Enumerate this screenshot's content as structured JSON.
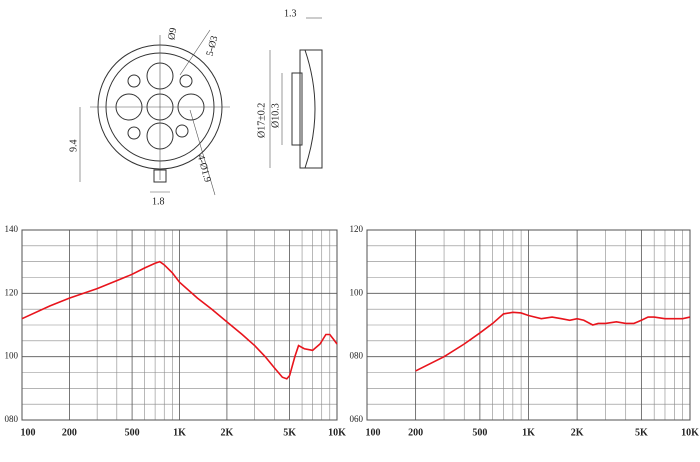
{
  "drawing": {
    "labels": [
      "1.3",
      "Ø9",
      "5-Ø3",
      "Ø17±0.2",
      "Ø10.3",
      "9.4",
      "1.8",
      "4-Ø1.9"
    ]
  },
  "chart_data": [
    {
      "type": "line",
      "xscale": "log",
      "color": "#e8141c",
      "grid": true,
      "xlim": [
        100,
        10000
      ],
      "ylim": [
        80,
        140
      ],
      "xticks": [
        100,
        200,
        500,
        {
          "value": 1000,
          "label": "1K"
        },
        {
          "value": 2000,
          "label": "2K"
        },
        {
          "value": 5000,
          "label": "5K"
        },
        {
          "value": 10000,
          "label": "10K"
        }
      ],
      "minor_xticks": [
        300,
        400,
        600,
        700,
        800,
        900,
        3000,
        4000,
        6000,
        7000,
        8000,
        9000
      ],
      "yticks": [
        140,
        120,
        100,
        {
          "value": 80,
          "label": "080"
        }
      ],
      "minor_yticks": [
        135,
        130,
        125,
        115,
        110,
        105,
        95,
        90,
        85
      ],
      "x": [
        100,
        150,
        200,
        300,
        400,
        500,
        600,
        700,
        750,
        800,
        900,
        1000,
        1300,
        1600,
        2000,
        2500,
        3000,
        3500,
        4000,
        4500,
        4800,
        5000,
        5400,
        5700,
        6200,
        7000,
        7800,
        8500,
        9000,
        9500,
        10000
      ],
      "values": [
        112,
        116,
        118.5,
        121.5,
        124,
        126,
        128,
        129.5,
        130,
        129,
        126.5,
        123.5,
        118.5,
        115,
        111,
        107,
        103.5,
        100,
        96.5,
        93.5,
        93,
        94,
        100,
        103.5,
        102.5,
        102,
        104,
        107,
        107,
        105.5,
        104
      ]
    },
    {
      "type": "line",
      "xscale": "log",
      "color": "#e8141c",
      "grid": true,
      "xlim": [
        100,
        10000
      ],
      "ylim": [
        60,
        120
      ],
      "xticks": [
        100,
        200,
        500,
        {
          "value": 1000,
          "label": "1K"
        },
        {
          "value": 2000,
          "label": "2K"
        },
        {
          "value": 5000,
          "label": "5K"
        },
        {
          "value": 10000,
          "label": "10K"
        }
      ],
      "minor_xticks": [
        300,
        400,
        600,
        700,
        800,
        900,
        3000,
        4000,
        6000,
        7000,
        8000,
        9000
      ],
      "yticks": [
        120,
        100,
        {
          "value": 80,
          "label": "080"
        },
        {
          "value": 60,
          "label": "060"
        }
      ],
      "minor_yticks": [
        115,
        110,
        105,
        95,
        90,
        85,
        75,
        70,
        65
      ],
      "x": [
        200,
        300,
        400,
        500,
        600,
        700,
        800,
        900,
        1000,
        1200,
        1400,
        1600,
        1800,
        2000,
        2200,
        2500,
        2700,
        3000,
        3500,
        4000,
        4500,
        5000,
        5500,
        6000,
        7000,
        8000,
        9000,
        10000
      ],
      "values": [
        75.5,
        80,
        84,
        87.5,
        90.5,
        93.5,
        94,
        93.8,
        93,
        92,
        92.5,
        92,
        91.5,
        92,
        91.5,
        90,
        90.5,
        90.5,
        91,
        90.5,
        90.5,
        91.5,
        92.5,
        92.5,
        92,
        92,
        92,
        92.5
      ]
    }
  ]
}
